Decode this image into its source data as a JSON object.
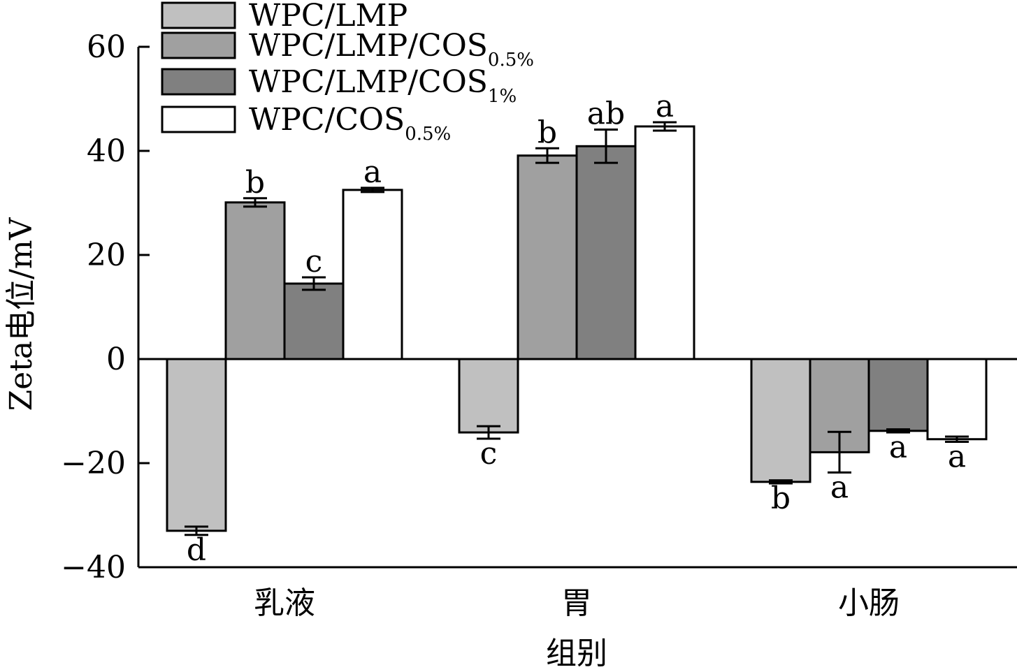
{
  "chart_data": {
    "type": "bar",
    "xlabel": "组别",
    "ylabel": "Zeta电位/mV",
    "ylim": [
      -40,
      60
    ],
    "yticks": [
      60,
      40,
      20,
      0,
      -20,
      -40
    ],
    "ytick_labels": [
      "60",
      "40",
      "20",
      "0",
      "−20",
      "−40"
    ],
    "categories": [
      "乳液",
      "胃",
      "小肠"
    ],
    "legend_position": "top-left",
    "grid": false,
    "series": [
      {
        "name": "WPC/LMP",
        "name_main": "WPC/LMP",
        "name_sub": "",
        "color": "#c0c0c0",
        "values": [
          -33.0,
          -14.1,
          -23.6
        ],
        "errors": [
          0.8,
          1.2,
          0.3
        ],
        "letters": [
          "d",
          "c",
          "b"
        ]
      },
      {
        "name": "WPC/LMP/COS0.5%",
        "name_main": "WPC/LMP/COS",
        "name_sub": "0.5%",
        "color": "#a0a0a0",
        "values": [
          30.1,
          39.1,
          -17.9
        ],
        "errors": [
          0.8,
          1.4,
          3.9
        ],
        "letters": [
          "b",
          "b",
          "a"
        ]
      },
      {
        "name": "WPC/LMP/COS1%",
        "name_main": "WPC/LMP/COS",
        "name_sub": "1%",
        "color": "#808080",
        "values": [
          14.5,
          40.9,
          -13.8
        ],
        "errors": [
          1.2,
          3.2,
          0.3
        ],
        "letters": [
          "c",
          "ab",
          "a"
        ]
      },
      {
        "name": "WPC/COS0.5%",
        "name_main": "WPC/COS",
        "name_sub": "0.5%",
        "color": "#ffffff",
        "values": [
          32.5,
          44.7,
          -15.4
        ],
        "errors": [
          0.4,
          0.8,
          0.5
        ],
        "letters": [
          "a",
          "a",
          "a"
        ]
      }
    ]
  }
}
